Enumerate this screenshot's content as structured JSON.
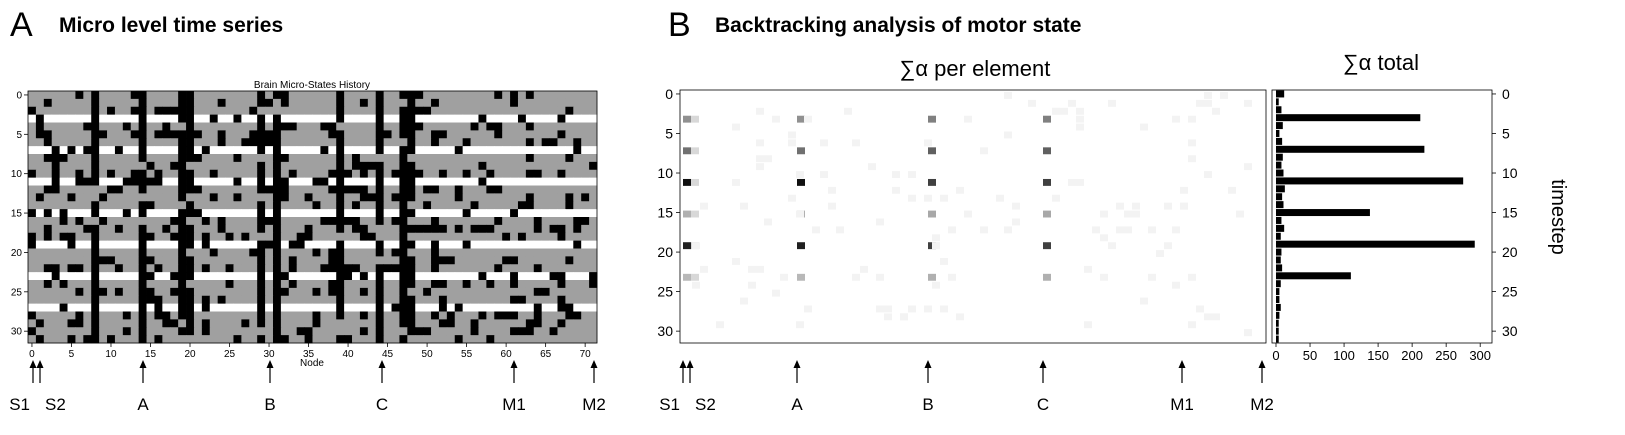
{
  "panel_a": {
    "letter": "A",
    "title": "Micro level time series"
  },
  "panel_b": {
    "letter": "B",
    "title": "Backtracking analysis of motor state"
  },
  "markers": [
    "S1",
    "S2",
    "A",
    "B",
    "C",
    "M1",
    "M2"
  ],
  "chart_data": [
    {
      "type": "heatmap",
      "title": "Brain Micro-States History",
      "xlabel": "Node",
      "ylabel": "",
      "x_ticks": [
        0,
        5,
        10,
        15,
        20,
        25,
        30,
        35,
        40,
        45,
        50,
        55,
        60,
        65,
        70
      ],
      "y_ticks": [
        0,
        5,
        10,
        15,
        20,
        25,
        30
      ],
      "xlim": [
        0,
        71
      ],
      "ylim": [
        0,
        31
      ],
      "cell_colors": [
        "#a0a0a0",
        "#000000",
        "#ffffff"
      ],
      "white_rows": [
        3,
        7,
        11,
        15,
        19,
        23,
        27
      ],
      "always_active_nodes": [
        8,
        14,
        19,
        20,
        29,
        31,
        39,
        44,
        47,
        48
      ],
      "marker_nodes": {
        "S1": 0,
        "S2": 1,
        "A": 14,
        "B": 30,
        "C": 44,
        "M1": 61,
        "M2": 71
      }
    },
    {
      "type": "heatmap",
      "title": "∑α per element",
      "xlabel": "",
      "ylabel": "",
      "y_ticks": [
        0,
        5,
        10,
        15,
        20,
        25,
        30
      ],
      "ylim": [
        0,
        31
      ],
      "strong_rows": [
        3,
        7,
        11,
        15,
        19,
        23
      ],
      "strong_columns": [
        "S1",
        "A",
        "B",
        "C"
      ]
    },
    {
      "type": "bar",
      "orientation": "horizontal",
      "title": "∑α total",
      "ylabel": "timestep",
      "x_ticks": [
        0,
        50,
        100,
        150,
        200,
        250,
        300
      ],
      "y_ticks": [
        0,
        5,
        10,
        15,
        20,
        25,
        30
      ],
      "xlim": [
        0,
        310
      ],
      "ylim": [
        0,
        31
      ],
      "bars": [
        {
          "t": 0,
          "v": 12
        },
        {
          "t": 1,
          "v": 4
        },
        {
          "t": 2,
          "v": 8
        },
        {
          "t": 3,
          "v": 212
        },
        {
          "t": 4,
          "v": 10
        },
        {
          "t": 5,
          "v": 5
        },
        {
          "t": 6,
          "v": 9
        },
        {
          "t": 7,
          "v": 218
        },
        {
          "t": 8,
          "v": 10
        },
        {
          "t": 9,
          "v": 8
        },
        {
          "t": 10,
          "v": 11
        },
        {
          "t": 11,
          "v": 275
        },
        {
          "t": 12,
          "v": 13
        },
        {
          "t": 13,
          "v": 9
        },
        {
          "t": 14,
          "v": 11
        },
        {
          "t": 15,
          "v": 138
        },
        {
          "t": 16,
          "v": 8
        },
        {
          "t": 17,
          "v": 12
        },
        {
          "t": 18,
          "v": 7
        },
        {
          "t": 19,
          "v": 292
        },
        {
          "t": 20,
          "v": 8
        },
        {
          "t": 21,
          "v": 7
        },
        {
          "t": 22,
          "v": 9
        },
        {
          "t": 23,
          "v": 110
        },
        {
          "t": 24,
          "v": 7
        },
        {
          "t": 25,
          "v": 5
        },
        {
          "t": 26,
          "v": 5
        },
        {
          "t": 27,
          "v": 7
        },
        {
          "t": 28,
          "v": 5
        },
        {
          "t": 29,
          "v": 4
        },
        {
          "t": 30,
          "v": 4
        },
        {
          "t": 31,
          "v": 4
        }
      ]
    }
  ]
}
